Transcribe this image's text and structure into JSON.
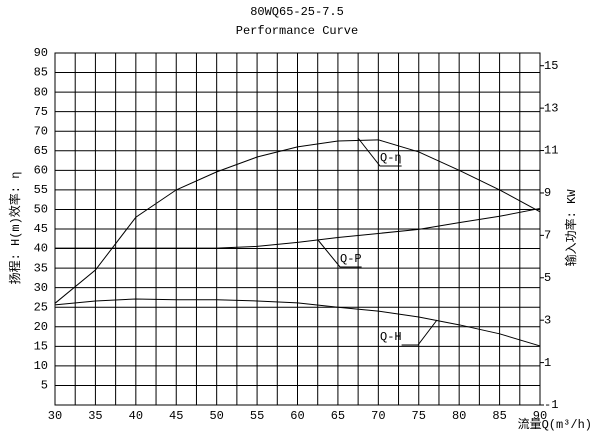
{
  "chart_data": {
    "type": "line",
    "title": "80WQ65-25-7.5",
    "subtitle": "Performance Curve",
    "x_label": "流量Q(m³/h)",
    "y_label": "扬程: H(m)效率: η",
    "y2_label": "输入功率: KW",
    "x": [
      30,
      35,
      40,
      45,
      50,
      55,
      60,
      65,
      70,
      75,
      80,
      85,
      90
    ],
    "series": [
      {
        "name": "Q-η",
        "color": "#000000",
        "values": [
          26,
          34.5,
          48,
          55,
          59.6,
          63.4,
          66,
          67.5,
          67.8,
          64.7,
          60,
          55,
          49.4
        ]
      },
      {
        "name": "Q-P",
        "color": "#000000",
        "axis": "y2",
        "values": [
          6.4,
          6.4,
          6.4,
          6.4,
          6.4,
          6.48,
          6.67,
          6.9,
          7.09,
          7.28,
          7.6,
          7.9,
          8.27
        ]
      },
      {
        "name": "Q-H",
        "color": "#000000",
        "values": [
          25.6,
          26.6,
          27.1,
          26.9,
          26.9,
          26.6,
          26.1,
          25,
          24,
          22.5,
          20.5,
          18.2,
          15.1
        ]
      }
    ],
    "xlim": [
      30,
      90
    ],
    "ylim": [
      0,
      90
    ],
    "y2lim": [
      -1,
      15.6
    ],
    "xticks": [
      30,
      35,
      40,
      45,
      50,
      55,
      60,
      65,
      70,
      75,
      80,
      85,
      90
    ],
    "xgrid": [
      32.5,
      37.5,
      42.5,
      47.5,
      52.5,
      57.5,
      62.5,
      67.5,
      72.5,
      77.5,
      82.5,
      87.5
    ],
    "yticks": [
      5,
      10,
      15,
      20,
      25,
      30,
      35,
      40,
      45,
      50,
      55,
      60,
      65,
      70,
      75,
      80,
      85,
      90
    ],
    "y2ticks": [
      -1,
      1,
      3,
      5,
      7,
      9,
      11,
      13,
      15
    ],
    "grid": true
  }
}
